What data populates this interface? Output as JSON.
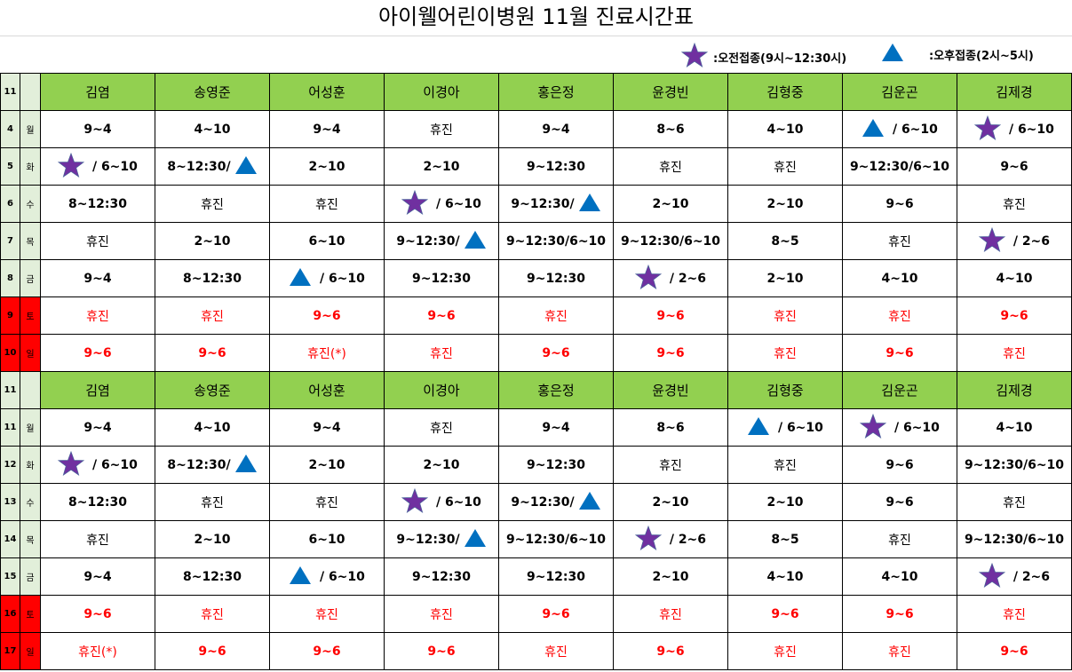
{
  "title": "아이웰어린이병원 11월 진료시간표",
  "legend": {
    "morning": {
      "icon": "star",
      "label": ":오전접종(9시~12:30시)"
    },
    "afternoon": {
      "icon": "triangle",
      "label": ":오후접종(2시~5시)"
    }
  },
  "colors": {
    "star": "#7030a0",
    "triangle": "#0070c0",
    "header": "#92d050",
    "weekday_side": "#e2efda",
    "weekend": "#ff0000"
  },
  "month": "11",
  "doctors": [
    "김염",
    "송영준",
    "어성훈",
    "이경아",
    "홍은정",
    "윤경빈",
    "김형중",
    "김운곤",
    "김제경"
  ],
  "weeks": [
    {
      "rows": [
        {
          "day": "4",
          "dow": "월",
          "weekend": false,
          "cells": [
            "9~4",
            "4~10",
            "9~4",
            "휴진",
            "9~4",
            "8~6",
            "4~10",
            "[tri] / 6~10",
            "[star] / 6~10"
          ]
        },
        {
          "day": "5",
          "dow": "화",
          "weekend": false,
          "cells": [
            "[star] / 6~10",
            "8~12:30/[tri]",
            "2~10",
            "2~10",
            "9~12:30",
            "휴진",
            "휴진",
            "9~12:30/6~10",
            "9~6"
          ]
        },
        {
          "day": "6",
          "dow": "수",
          "weekend": false,
          "cells": [
            "8~12:30",
            "휴진",
            "휴진",
            "[star] / 6~10",
            "9~12:30/[tri]",
            "2~10",
            "2~10",
            "9~6",
            "휴진"
          ]
        },
        {
          "day": "7",
          "dow": "목",
          "weekend": false,
          "cells": [
            "휴진",
            "2~10",
            "6~10",
            "9~12:30/[tri]",
            "9~12:30/6~10",
            "9~12:30/6~10",
            "8~5",
            "휴진",
            "[star] / 2~6"
          ]
        },
        {
          "day": "8",
          "dow": "금",
          "weekend": false,
          "cells": [
            "9~4",
            "8~12:30",
            "[tri] / 6~10",
            "9~12:30",
            "9~12:30",
            "[star] / 2~6",
            "2~10",
            "4~10",
            "4~10"
          ]
        },
        {
          "day": "9",
          "dow": "토",
          "weekend": true,
          "cells": [
            "휴진",
            "휴진",
            "9~6",
            "9~6",
            "휴진",
            "9~6",
            "휴진",
            "휴진",
            "9~6"
          ]
        },
        {
          "day": "10",
          "dow": "일",
          "weekend": true,
          "cells": [
            "9~6",
            "9~6",
            "휴진(*)",
            "휴진",
            "9~6",
            "9~6",
            "휴진",
            "9~6",
            "휴진"
          ]
        }
      ]
    },
    {
      "rows": [
        {
          "day": "11",
          "dow": "월",
          "weekend": false,
          "cells": [
            "9~4",
            "4~10",
            "9~4",
            "휴진",
            "9~4",
            "8~6",
            "[tri] / 6~10",
            "[star] / 6~10",
            "4~10"
          ]
        },
        {
          "day": "12",
          "dow": "화",
          "weekend": false,
          "cells": [
            "[star] / 6~10",
            "8~12:30/[tri]",
            "2~10",
            "2~10",
            "9~12:30",
            "휴진",
            "휴진",
            "9~6",
            "9~12:30/6~10"
          ]
        },
        {
          "day": "13",
          "dow": "수",
          "weekend": false,
          "cells": [
            "8~12:30",
            "휴진",
            "휴진",
            "[star] / 6~10",
            "9~12:30/[tri]",
            "2~10",
            "2~10",
            "9~6",
            "휴진"
          ]
        },
        {
          "day": "14",
          "dow": "목",
          "weekend": false,
          "cells": [
            "휴진",
            "2~10",
            "6~10",
            "9~12:30/[tri]",
            "9~12:30/6~10",
            "[star] / 2~6",
            "8~5",
            "휴진",
            "9~12:30/6~10"
          ]
        },
        {
          "day": "15",
          "dow": "금",
          "weekend": false,
          "cells": [
            "9~4",
            "8~12:30",
            "[tri] / 6~10",
            "9~12:30",
            "9~12:30",
            "2~10",
            "4~10",
            "4~10",
            "[star] / 2~6"
          ]
        },
        {
          "day": "16",
          "dow": "토",
          "weekend": true,
          "cells": [
            "9~6",
            "휴진",
            "휴진",
            "휴진",
            "9~6",
            "휴진",
            "9~6",
            "9~6",
            "휴진"
          ]
        },
        {
          "day": "17",
          "dow": "일",
          "weekend": true,
          "cells": [
            "휴진(*)",
            "9~6",
            "9~6",
            "9~6",
            "휴진",
            "9~6",
            "휴진",
            "휴진",
            "9~6"
          ]
        }
      ]
    }
  ]
}
